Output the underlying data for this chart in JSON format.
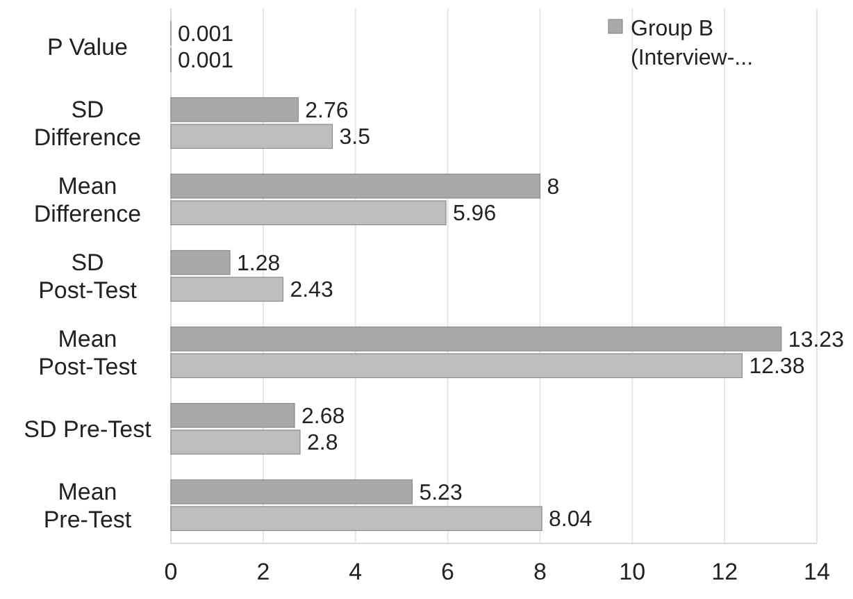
{
  "chart_data": {
    "type": "bar",
    "orientation": "horizontal",
    "categories": [
      "P Value",
      "SD\nDifference",
      "Mean\nDifference",
      "SD\nPost-Test",
      "Mean\nPost-Test",
      "SD Pre-Test",
      "Mean\nPre-Test"
    ],
    "series": [
      {
        "name": "Group B\n(Interview-...",
        "color": "#a9a9a9",
        "values": [
          0.001,
          2.76,
          8,
          1.28,
          13.23,
          2.68,
          5.23
        ]
      },
      {
        "color": "#bdbdbd",
        "values": [
          0.001,
          3.5,
          5.96,
          2.43,
          12.38,
          2.8,
          8.04
        ]
      }
    ],
    "xlim": [
      0,
      14
    ],
    "xticks": [
      0,
      2,
      4,
      6,
      8,
      10,
      12,
      14
    ],
    "grid": "x",
    "legend": "top right",
    "data_labels": true
  }
}
